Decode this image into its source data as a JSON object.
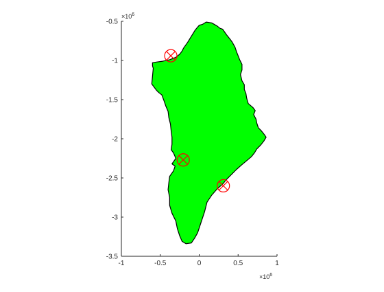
{
  "figure": {
    "background": "#ffffff",
    "axis_color": "#262626",
    "land_fill": "#00ff00",
    "coast_color": "#000000",
    "marker_color": "#ff0000"
  },
  "chart_data": {
    "type": "scatter",
    "title": "",
    "xlabel": "",
    "ylabel": "",
    "xlim": [
      -1,
      1
    ],
    "ylim": [
      -3.5,
      -0.5
    ],
    "axis_multiplier": "×10^6",
    "x_exponent_base": "×10",
    "x_exponent_power": "6",
    "y_exponent_base": "×10",
    "y_exponent_power": "6",
    "xticks": [
      {
        "value": -1,
        "label": "-1"
      },
      {
        "value": -0.5,
        "label": "-0.5"
      },
      {
        "value": 0,
        "label": "0"
      },
      {
        "value": 0.5,
        "label": "0.5"
      },
      {
        "value": 1,
        "label": "1"
      }
    ],
    "yticks": [
      {
        "value": -0.5,
        "label": "-0.5"
      },
      {
        "value": -1,
        "label": "-1"
      },
      {
        "value": -1.5,
        "label": "-1.5"
      },
      {
        "value": -2,
        "label": "-2"
      },
      {
        "value": -2.5,
        "label": "-2.5"
      },
      {
        "value": -3,
        "label": "-3"
      },
      {
        "value": -3.5,
        "label": "-3.5"
      }
    ],
    "grid": false,
    "box": "off",
    "series": [
      {
        "kind": "filled-outline",
        "fill": "#00ff00",
        "edge": "#000000",
        "outline": [
          [
            0.04,
            -0.54
          ],
          [
            0.09,
            -0.51
          ],
          [
            0.16,
            -0.52
          ],
          [
            0.23,
            -0.56
          ],
          [
            0.27,
            -0.59
          ],
          [
            0.3,
            -0.6
          ],
          [
            0.35,
            -0.67
          ],
          [
            0.39,
            -0.72
          ],
          [
            0.42,
            -0.76
          ],
          [
            0.46,
            -0.83
          ],
          [
            0.48,
            -0.89
          ],
          [
            0.5,
            -0.94
          ],
          [
            0.52,
            -0.99
          ],
          [
            0.55,
            -1.05
          ],
          [
            0.55,
            -1.12
          ],
          [
            0.53,
            -1.18
          ],
          [
            0.55,
            -1.26
          ],
          [
            0.58,
            -1.31
          ],
          [
            0.58,
            -1.37
          ],
          [
            0.6,
            -1.42
          ],
          [
            0.61,
            -1.48
          ],
          [
            0.63,
            -1.55
          ],
          [
            0.69,
            -1.6
          ],
          [
            0.72,
            -1.64
          ],
          [
            0.7,
            -1.69
          ],
          [
            0.73,
            -1.75
          ],
          [
            0.74,
            -1.8
          ],
          [
            0.76,
            -1.86
          ],
          [
            0.8,
            -1.9
          ],
          [
            0.84,
            -1.95
          ],
          [
            0.86,
            -1.98
          ],
          [
            0.83,
            -2.03
          ],
          [
            0.79,
            -2.08
          ],
          [
            0.74,
            -2.13
          ],
          [
            0.71,
            -2.18
          ],
          [
            0.67,
            -2.23
          ],
          [
            0.61,
            -2.28
          ],
          [
            0.55,
            -2.33
          ],
          [
            0.48,
            -2.39
          ],
          [
            0.42,
            -2.45
          ],
          [
            0.35,
            -2.52
          ],
          [
            0.3,
            -2.58
          ],
          [
            0.23,
            -2.64
          ],
          [
            0.16,
            -2.72
          ],
          [
            0.1,
            -2.81
          ],
          [
            0.07,
            -2.93
          ],
          [
            0.04,
            -3.02
          ],
          [
            0.01,
            -3.11
          ],
          [
            -0.02,
            -3.2
          ],
          [
            -0.06,
            -3.27
          ],
          [
            -0.1,
            -3.33
          ],
          [
            -0.17,
            -3.34
          ],
          [
            -0.22,
            -3.31
          ],
          [
            -0.25,
            -3.24
          ],
          [
            -0.28,
            -3.15
          ],
          [
            -0.3,
            -3.05
          ],
          [
            -0.35,
            -2.95
          ],
          [
            -0.38,
            -2.85
          ],
          [
            -0.38,
            -2.75
          ],
          [
            -0.4,
            -2.65
          ],
          [
            -0.39,
            -2.56
          ],
          [
            -0.38,
            -2.48
          ],
          [
            -0.33,
            -2.41
          ],
          [
            -0.31,
            -2.35
          ],
          [
            -0.35,
            -2.32
          ],
          [
            -0.3,
            -2.25
          ],
          [
            -0.33,
            -2.18
          ],
          [
            -0.36,
            -2.14
          ],
          [
            -0.35,
            -2.07
          ],
          [
            -0.35,
            -1.98
          ],
          [
            -0.36,
            -1.9
          ],
          [
            -0.37,
            -1.81
          ],
          [
            -0.39,
            -1.73
          ],
          [
            -0.4,
            -1.65
          ],
          [
            -0.43,
            -1.58
          ],
          [
            -0.45,
            -1.52
          ],
          [
            -0.48,
            -1.44
          ],
          [
            -0.52,
            -1.41
          ],
          [
            -0.55,
            -1.38
          ],
          [
            -0.61,
            -1.3
          ],
          [
            -0.6,
            -1.2
          ],
          [
            -0.59,
            -1.1
          ],
          [
            -0.6,
            -1.07
          ],
          [
            -0.6,
            -1.03
          ],
          [
            -0.55,
            -1.02
          ],
          [
            -0.47,
            -1.01
          ],
          [
            -0.38,
            -0.99
          ],
          [
            -0.3,
            -0.96
          ],
          [
            -0.25,
            -0.92
          ],
          [
            -0.22,
            -0.88
          ],
          [
            -0.2,
            -0.84
          ],
          [
            -0.15,
            -0.77
          ],
          [
            -0.1,
            -0.69
          ],
          [
            -0.05,
            -0.61
          ],
          [
            0.0,
            -0.55
          ]
        ]
      },
      {
        "kind": "markers",
        "marker": "circled-x",
        "color": "#ff0000",
        "points": [
          {
            "x": -0.365,
            "y": -0.94
          },
          {
            "x": -0.205,
            "y": -2.27
          },
          {
            "x": 0.31,
            "y": -2.6
          }
        ]
      }
    ]
  }
}
